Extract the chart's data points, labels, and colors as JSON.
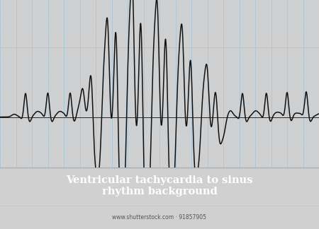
{
  "title": "Ventricular tachycardia to sinus\nrhythm background",
  "title_color": "#ffffff",
  "bg_color": "#daeaf5",
  "grid_color_fine": "#b8d4e8",
  "grid_color_coarse": "#a0c4dc",
  "ecg_color": "#111111",
  "bar_color": "#0a0a0a",
  "watermark": "www.shutterstock.com · 91857905",
  "watermark_color": "#555555",
  "outer_bg": "#d0d0d0",
  "figsize": [
    4.5,
    3.24
  ],
  "dpi": 100
}
